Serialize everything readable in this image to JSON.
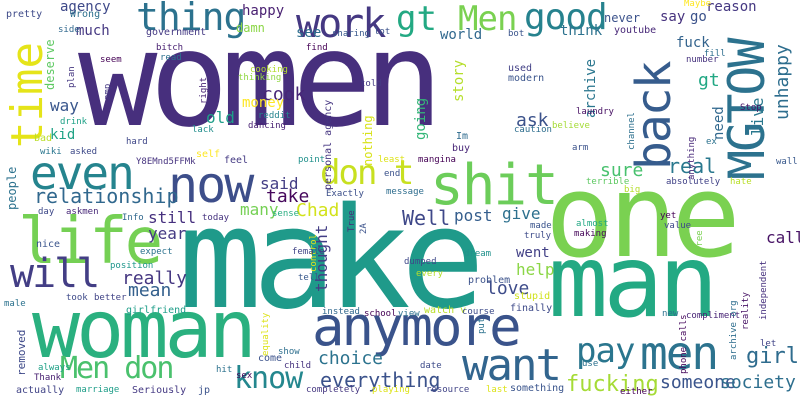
{
  "cloud": {
    "words": [
      {
        "text": "women",
        "color": "#472f7d"
      },
      {
        "text": "make",
        "color": "#1f9a8a"
      },
      {
        "text": "one",
        "color": "#7ad151"
      },
      {
        "text": "man",
        "color": "#23a983"
      },
      {
        "text": "woman",
        "color": "#2ab07f"
      },
      {
        "text": "anymore",
        "color": "#3a538b"
      },
      {
        "text": "life",
        "color": "#75d054"
      },
      {
        "text": "shit",
        "color": "#6ccd5a"
      },
      {
        "text": "now",
        "color": "#3d4e8a"
      },
      {
        "text": "even",
        "color": "#25848e"
      },
      {
        "text": "time",
        "color": "#e5e419"
      },
      {
        "text": "MGTOW",
        "color": "#2c728e"
      },
      {
        "text": "back",
        "color": "#365c8d"
      },
      {
        "text": "men",
        "color": "#2c738e"
      },
      {
        "text": "want",
        "color": "#32658e"
      },
      {
        "text": "will",
        "color": "#433e85"
      },
      {
        "text": "thing",
        "color": "#2c728e"
      },
      {
        "text": "work",
        "color": "#453882"
      },
      {
        "text": "good",
        "color": "#26828e"
      },
      {
        "text": "gt",
        "color": "#23a983"
      },
      {
        "text": "Men",
        "color": "#7ad151"
      },
      {
        "text": "don t",
        "color": "#c8e020"
      },
      {
        "text": "know",
        "color": "#24878e"
      },
      {
        "text": "pay",
        "color": "#2a768e"
      },
      {
        "text": "Men don",
        "color": "#4ac16d"
      },
      {
        "text": "relationship",
        "color": "#31688e"
      },
      {
        "text": "girl",
        "color": "#2f6c8e"
      },
      {
        "text": "everything",
        "color": "#3b528b"
      },
      {
        "text": "fucking",
        "color": "#a5db36"
      },
      {
        "text": "someone",
        "color": "#3a548c"
      },
      {
        "text": "society",
        "color": "#2e6f8e"
      },
      {
        "text": "choice",
        "color": "#2c738e"
      },
      {
        "text": "love",
        "color": "#3e4c8a"
      },
      {
        "text": "really",
        "color": "#453781"
      },
      {
        "text": "mean",
        "color": "#34608d"
      },
      {
        "text": "year",
        "color": "#443a83"
      },
      {
        "text": "many",
        "color": "#75d054"
      },
      {
        "text": "still",
        "color": "#46307e"
      },
      {
        "text": "real",
        "color": "#29788e"
      },
      {
        "text": "sure",
        "color": "#48c16e"
      },
      {
        "text": "take",
        "color": "#46085c"
      },
      {
        "text": "Chad",
        "color": "#d2e21b"
      },
      {
        "text": "Well",
        "color": "#3f4889"
      },
      {
        "text": "post",
        "color": "#355e8d"
      },
      {
        "text": "give",
        "color": "#2d708e"
      },
      {
        "text": "thought",
        "color": "#433e85"
      },
      {
        "text": "help",
        "color": "#8bd646"
      },
      {
        "text": "went",
        "color": "#424086"
      },
      {
        "text": "said",
        "color": "#433d84"
      },
      {
        "text": "cook",
        "color": "#482677"
      },
      {
        "text": "money",
        "color": "#fde725"
      },
      {
        "text": "old",
        "color": "#1f9e89"
      },
      {
        "text": "ask",
        "color": "#3b528b"
      },
      {
        "text": "call",
        "color": "#471365"
      },
      {
        "text": "say",
        "color": "#46327e"
      },
      {
        "text": "go",
        "color": "#3b528b"
      },
      {
        "text": "kid",
        "color": "#20a386"
      },
      {
        "text": "way",
        "color": "#39568c"
      },
      {
        "text": "much",
        "color": "#453882"
      },
      {
        "text": "agency",
        "color": "#3e4989"
      },
      {
        "text": "happy",
        "color": "#481f71"
      },
      {
        "text": "damn",
        "color": "#8bd646"
      },
      {
        "text": "world",
        "color": "#31688e"
      },
      {
        "text": "think",
        "color": "#2c728e"
      },
      {
        "text": "story",
        "color": "#b5de2b"
      },
      {
        "text": "archive",
        "color": "#2a768e"
      },
      {
        "text": "going",
        "color": "#35b779"
      },
      {
        "text": "fuck",
        "color": "#33638d"
      },
      {
        "text": "gt",
        "color": "#22a884"
      },
      {
        "text": "reason",
        "color": "#453882"
      },
      {
        "text": "never",
        "color": "#3b528b"
      },
      {
        "text": "unhappy",
        "color": "#2e6e8e"
      },
      {
        "text": "live",
        "color": "#2a788e"
      },
      {
        "text": "need",
        "color": "#31688e"
      },
      {
        "text": "deserve",
        "color": "#5ec962"
      },
      {
        "text": "people",
        "color": "#2c728e"
      },
      {
        "text": "nothing",
        "color": "#d8e219"
      },
      {
        "text": "see",
        "color": "#2e6f8e"
      },
      {
        "text": "government",
        "color": "#443983"
      },
      {
        "text": "youtube",
        "color": "#482878"
      },
      {
        "text": "used",
        "color": "#424086"
      },
      {
        "text": "modern",
        "color": "#3a548c"
      },
      {
        "text": "personal agency",
        "color": "#453581"
      },
      {
        "text": "pretty",
        "color": "#3e4a89"
      },
      {
        "text": "Wrong",
        "color": "#2d708e"
      },
      {
        "text": "side",
        "color": "#31688e"
      },
      {
        "text": "seem",
        "color": "#440154"
      },
      {
        "text": "bitch",
        "color": "#482071"
      },
      {
        "text": "read",
        "color": "#2c718e"
      },
      {
        "text": "sharing",
        "color": "#38588c"
      },
      {
        "text": "lot",
        "color": "#3b528b"
      },
      {
        "text": "bot",
        "color": "#3a548c"
      },
      {
        "text": "Maybe",
        "color": "#fde725"
      },
      {
        "text": "number",
        "color": "#46327e"
      },
      {
        "text": "fill",
        "color": "#2e6e8e"
      },
      {
        "text": "find",
        "color": "#440154"
      },
      {
        "text": "cooking",
        "color": "#b2dd2d"
      },
      {
        "text": "thinking",
        "color": "#90d743"
      },
      {
        "text": "dancing",
        "color": "#482173"
      },
      {
        "text": "reddit",
        "color": "#25848e"
      },
      {
        "text": "told",
        "color": "#443983"
      },
      {
        "text": "laundry",
        "color": "#471063"
      },
      {
        "text": "caution",
        "color": "#2e6e8e"
      },
      {
        "text": "believe",
        "color": "#a5db36"
      },
      {
        "text": "Stop",
        "color": "#471365"
      },
      {
        "text": "Im",
        "color": "#2f6b8e"
      },
      {
        "text": "buy",
        "color": "#482677"
      },
      {
        "text": "arm",
        "color": "#3b528b"
      },
      {
        "text": "channel",
        "color": "#2d708e"
      },
      {
        "text": "ex",
        "color": "#2c728e"
      },
      {
        "text": "wall",
        "color": "#38588c"
      },
      {
        "text": "hate",
        "color": "#b8de29"
      },
      {
        "text": "absolutely",
        "color": "#414287"
      },
      {
        "text": "big",
        "color": "#b5de2b"
      },
      {
        "text": "anything",
        "color": "#482979"
      },
      {
        "text": "terrible",
        "color": "#5ec962"
      },
      {
        "text": "least",
        "color": "#dde318"
      },
      {
        "text": "end",
        "color": "#3b528b"
      },
      {
        "text": "mangina",
        "color": "#440154"
      },
      {
        "text": "Exactly",
        "color": "#3c4f8a"
      },
      {
        "text": "message",
        "color": "#2e6d8e"
      },
      {
        "text": "point",
        "color": "#21918c"
      },
      {
        "text": "feel",
        "color": "#443a83"
      },
      {
        "text": "self",
        "color": "#fde725"
      },
      {
        "text": "lack",
        "color": "#218e8d"
      },
      {
        "text": "Y8EMnd5FFMk",
        "color": "#46337f"
      },
      {
        "text": "hard",
        "color": "#3f4788"
      },
      {
        "text": "drink",
        "color": "#1fa187"
      },
      {
        "text": "bad",
        "color": "#bade28"
      },
      {
        "text": "asked",
        "color": "#3e4a89"
      },
      {
        "text": "wiki",
        "color": "#2a768e"
      },
      {
        "text": "plan",
        "color": "#453781"
      },
      {
        "text": "amp",
        "color": "#443983"
      },
      {
        "text": "right",
        "color": "#482475"
      },
      {
        "text": "day",
        "color": "#3e4989"
      },
      {
        "text": "askmen",
        "color": "#482878"
      },
      {
        "text": "Info",
        "color": "#31688e"
      },
      {
        "text": "today",
        "color": "#46337f"
      },
      {
        "text": "sense",
        "color": "#28ae80"
      },
      {
        "text": "True",
        "color": "#472d7b"
      },
      {
        "text": "2A",
        "color": "#3b528b"
      },
      {
        "text": "control",
        "color": "#e5e419"
      },
      {
        "text": "expect",
        "color": "#2c728e"
      },
      {
        "text": "nice",
        "color": "#3a548c"
      },
      {
        "text": "position",
        "color": "#1f968b"
      },
      {
        "text": "female",
        "color": "#414487"
      },
      {
        "text": "dumped",
        "color": "#3f4889"
      },
      {
        "text": "dream",
        "color": "#21918c"
      },
      {
        "text": "truly",
        "color": "#3e4c8a"
      },
      {
        "text": "made",
        "color": "#3a548c"
      },
      {
        "text": "almost",
        "color": "#22a884"
      },
      {
        "text": "making",
        "color": "#46075a"
      },
      {
        "text": "yet",
        "color": "#440154"
      },
      {
        "text": "value",
        "color": "#3e4989"
      },
      {
        "text": "free",
        "color": "#7ad151"
      },
      {
        "text": "independent",
        "color": "#46307e"
      },
      {
        "text": "male",
        "color": "#2c728e"
      },
      {
        "text": "tell",
        "color": "#38588c"
      },
      {
        "text": "every",
        "color": "#b5de2b"
      },
      {
        "text": "problem",
        "color": "#3b528b"
      },
      {
        "text": "stupid",
        "color": "#d0e11c"
      },
      {
        "text": "finally",
        "color": "#3e4a89"
      },
      {
        "text": "compliment",
        "color": "#482475"
      },
      {
        "text": "new",
        "color": "#2c728e"
      },
      {
        "text": "reality",
        "color": "#471365"
      },
      {
        "text": "archive org",
        "color": "#2e6e8e"
      },
      {
        "text": "phone calls",
        "color": "#46085c"
      },
      {
        "text": "took",
        "color": "#3e4a89"
      },
      {
        "text": "better",
        "color": "#414487"
      },
      {
        "text": "girlfriend",
        "color": "#1f9e89"
      },
      {
        "text": "removed",
        "color": "#3e4989"
      },
      {
        "text": "equality",
        "color": "#dde318"
      },
      {
        "text": "instead",
        "color": "#31688e"
      },
      {
        "text": "school",
        "color": "#440154"
      },
      {
        "text": "view",
        "color": "#2c718e"
      },
      {
        "text": "watch v",
        "color": "#bade28"
      },
      {
        "text": "course",
        "color": "#3e4c8a"
      },
      {
        "text": "put",
        "color": "#2c728e"
      },
      {
        "text": "let",
        "color": "#414487"
      },
      {
        "text": "come",
        "color": "#3b528b"
      },
      {
        "text": "show",
        "color": "#2e6f8e"
      },
      {
        "text": "child",
        "color": "#46337f"
      },
      {
        "text": "date",
        "color": "#3e4c8a"
      },
      {
        "text": "hit",
        "color": "#2c728e"
      },
      {
        "text": "sex",
        "color": "#46075a"
      },
      {
        "text": "always",
        "color": "#1fa187"
      },
      {
        "text": "Thank",
        "color": "#482071"
      },
      {
        "text": "actually",
        "color": "#414487"
      },
      {
        "text": "marriage",
        "color": "#1f9e89"
      },
      {
        "text": "Seriously",
        "color": "#443983"
      },
      {
        "text": "jp",
        "color": "#3b528b"
      },
      {
        "text": "completely",
        "color": "#453781"
      },
      {
        "text": "playing",
        "color": "#dde318"
      },
      {
        "text": "resource",
        "color": "#414487"
      },
      {
        "text": "last",
        "color": "#dde318"
      },
      {
        "text": "something",
        "color": "#3a548c"
      },
      {
        "text": "use",
        "color": "#2c718e"
      },
      {
        "text": "either",
        "color": "#440154"
      }
    ]
  }
}
